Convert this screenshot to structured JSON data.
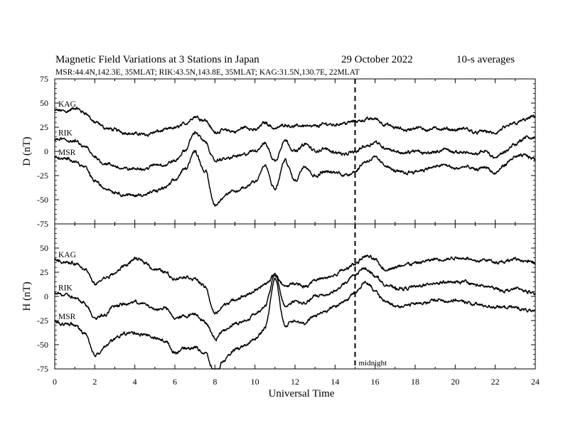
{
  "chart_data": {
    "type": "line",
    "title": "Magnetic Field Variations at 3 Stations in Japan",
    "date": "29 October 2022",
    "averaging": "10-s averages",
    "subtitle": "MSR:44.4N,142.3E, 35MLAT;  RIK:43.5N,143.8E, 35MLAT;  KAG:31.5N,130.7E, 22MLAT",
    "xlabel": "Universal Time",
    "xlim": [
      0,
      24
    ],
    "xticks": [
      "0",
      "2",
      "4",
      "6",
      "8",
      "10",
      "12",
      "14",
      "16",
      "18",
      "20",
      "22",
      "24"
    ],
    "grid": false,
    "annotation": {
      "label": "midnight",
      "x": 15
    },
    "panels": [
      {
        "ylabel": "D (nT)",
        "ylim": [
          -75,
          75
        ],
        "yticks": [
          "75",
          "50",
          "25",
          "0",
          "-25",
          "-50",
          "-75"
        ],
        "x": [
          0,
          0.5,
          1,
          1.5,
          2,
          2.5,
          3,
          3.5,
          4,
          4.5,
          5,
          5.5,
          6,
          6.5,
          7,
          7.5,
          8,
          8.5,
          9,
          9.5,
          10,
          10.5,
          11,
          11.5,
          12,
          12.5,
          13,
          13.5,
          14,
          14.5,
          15,
          15.5,
          16,
          16.5,
          17,
          17.5,
          18,
          18.5,
          19,
          19.5,
          20,
          20.5,
          21,
          21.5,
          22,
          22.5,
          23,
          23.5,
          24
        ],
        "series": [
          {
            "name": "KAG",
            "values": [
              42,
              42,
              44,
              40,
              30,
              24,
              22,
              20,
              18,
              18,
              20,
              22,
              24,
              29,
              36,
              33,
              20,
              22,
              20,
              25,
              22,
              30,
              24,
              28,
              26,
              27,
              26,
              28,
              28,
              30,
              31,
              33,
              34,
              28,
              24,
              22,
              24,
              23,
              24,
              22,
              22,
              23,
              20,
              21,
              18,
              24,
              30,
              33,
              36
            ]
          },
          {
            "name": "RIK",
            "values": [
              12,
              12,
              10,
              4,
              -6,
              -12,
              -16,
              -18,
              -18,
              -18,
              -14,
              -14,
              -10,
              0,
              20,
              10,
              -10,
              -8,
              -5,
              -3,
              0,
              8,
              -10,
              12,
              0,
              8,
              0,
              2,
              0,
              -3,
              0,
              6,
              10,
              4,
              0,
              -2,
              0,
              -2,
              0,
              2,
              -2,
              0,
              -4,
              0,
              -6,
              0,
              8,
              14,
              14
            ]
          },
          {
            "name": "MSR",
            "values": [
              -6,
              -8,
              -10,
              -16,
              -30,
              -38,
              -42,
              -45,
              -46,
              -44,
              -42,
              -38,
              -30,
              -18,
              0,
              -20,
              -55,
              -46,
              -42,
              -38,
              -30,
              -15,
              -40,
              -10,
              -30,
              -14,
              -25,
              -20,
              -22,
              -24,
              -20,
              -10,
              -6,
              -14,
              -20,
              -22,
              -20,
              -18,
              -16,
              -14,
              -18,
              -16,
              -20,
              -16,
              -24,
              -14,
              -6,
              -4,
              -8
            ]
          }
        ]
      },
      {
        "ylabel": "H (nT)",
        "ylim": [
          -75,
          75
        ],
        "yticks": [
          "75",
          "50",
          "25",
          "0",
          "-25",
          "-50",
          "-75"
        ],
        "x": [
          0,
          0.5,
          1,
          1.5,
          2,
          2.5,
          3,
          3.5,
          4,
          4.5,
          5,
          5.5,
          6,
          6.5,
          7,
          7.5,
          8,
          8.5,
          9,
          9.5,
          10,
          10.5,
          11,
          11.5,
          12,
          12.5,
          13,
          13.5,
          14,
          14.5,
          15,
          15.5,
          16,
          16.5,
          17,
          17.5,
          18,
          18.5,
          19,
          19.5,
          20,
          20.5,
          21,
          21.5,
          22,
          22.5,
          23,
          23.5,
          24
        ],
        "series": [
          {
            "name": "KAG",
            "values": [
              38,
              36,
              34,
              28,
              12,
              18,
              24,
              32,
              38,
              36,
              28,
              26,
              18,
              20,
              18,
              10,
              -18,
              -8,
              -4,
              0,
              6,
              12,
              22,
              10,
              14,
              10,
              18,
              18,
              22,
              28,
              34,
              42,
              38,
              28,
              30,
              32,
              34,
              36,
              38,
              38,
              40,
              40,
              38,
              38,
              36,
              36,
              38,
              36,
              34
            ]
          },
          {
            "name": "RIK",
            "values": [
              4,
              2,
              -2,
              -8,
              -22,
              -18,
              -10,
              -8,
              -6,
              -8,
              -14,
              -12,
              -22,
              -20,
              -18,
              -26,
              -44,
              -34,
              -28,
              -26,
              -18,
              -10,
              22,
              -10,
              -4,
              -8,
              0,
              2,
              6,
              14,
              22,
              30,
              22,
              12,
              8,
              8,
              10,
              12,
              14,
              14,
              14,
              16,
              12,
              10,
              8,
              6,
              8,
              6,
              2
            ]
          },
          {
            "name": "MSR",
            "values": [
              -26,
              -28,
              -30,
              -38,
              -60,
              -52,
              -44,
              -38,
              -38,
              -40,
              -44,
              -46,
              -58,
              -54,
              -52,
              -58,
              -80,
              -66,
              -56,
              -52,
              -44,
              -32,
              18,
              -30,
              -24,
              -28,
              -20,
              -16,
              -10,
              -4,
              4,
              16,
              6,
              -6,
              -10,
              -10,
              -8,
              -6,
              -4,
              -4,
              -4,
              -6,
              -8,
              -10,
              -10,
              -12,
              -12,
              -14,
              -16
            ]
          }
        ]
      }
    ]
  }
}
